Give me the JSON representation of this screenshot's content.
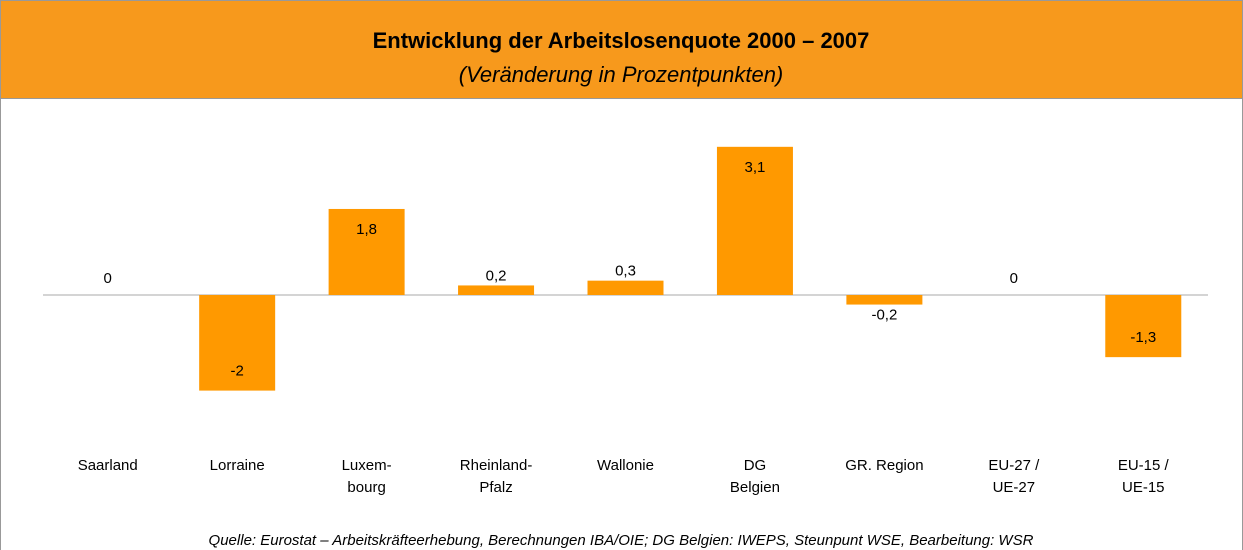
{
  "chart_data": {
    "type": "bar",
    "title": "Entwicklung der Arbeitslosenquote 2000 – 2007",
    "subtitle": "(Veränderung in Prozentpunkten)",
    "categories": [
      "Saarland",
      "Lorraine",
      "Luxem-\nbourg",
      "Rheinland-\nPfalz",
      "Wallonie",
      "DG\nBelgien",
      "GR. Region",
      "EU-27 /\nUE-27",
      "EU-15 /\nUE-15"
    ],
    "values": [
      0,
      -2,
      1.8,
      0.2,
      0.3,
      3.1,
      -0.2,
      0,
      -1.3
    ],
    "value_labels": [
      "0",
      "-2",
      "1,8",
      "0,2",
      "0,3",
      "3,1",
      "-0,2",
      "0",
      "-1,3"
    ],
    "color": "#ff9900",
    "source": "Quelle: Eurostat – Arbeitskräfteerhebung, Berechnungen IBA/OIE; DG Belgien: IWEPS, Steunpunt WSE, Bearbeitung: WSR"
  }
}
